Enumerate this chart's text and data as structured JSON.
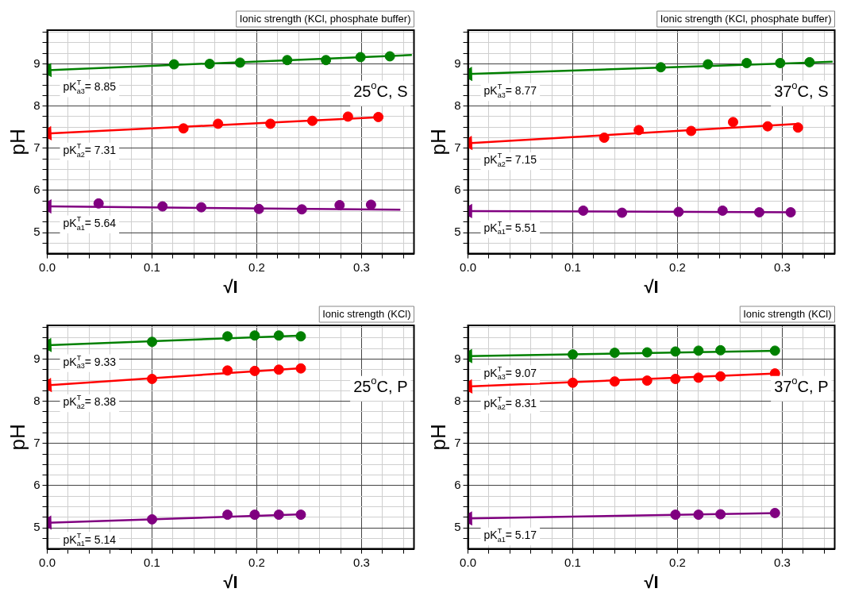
{
  "chart_data": [
    {
      "type": "scatter",
      "title": "Ionic strength (KCl, phosphate buffer)",
      "xlabel": "√I",
      "ylabel": "pH",
      "xlim": [
        0,
        0.35
      ],
      "ylim": [
        4.5,
        9.8
      ],
      "xticks": [
        {
          "value": 0,
          "label": "0.0"
        },
        {
          "value": 0.02,
          "label": null
        },
        {
          "value": 0.04,
          "label": null
        },
        {
          "value": 0.06,
          "label": null
        },
        {
          "value": 0.08,
          "label": null
        },
        {
          "value": 0.1,
          "label": "0.1"
        },
        {
          "value": 0.12,
          "label": null
        },
        {
          "value": 0.14,
          "label": null
        },
        {
          "value": 0.16,
          "label": null
        },
        {
          "value": 0.18,
          "label": null
        },
        {
          "value": 0.2,
          "label": "0.2"
        },
        {
          "value": 0.22,
          "label": null
        },
        {
          "value": 0.24,
          "label": null
        },
        {
          "value": 0.26,
          "label": null
        },
        {
          "value": 0.28,
          "label": null
        },
        {
          "value": 0.3,
          "label": "0.3"
        },
        {
          "value": 0.32,
          "label": null
        },
        {
          "value": 0.34,
          "label": null
        }
      ],
      "yticks": [
        {
          "value": 4.75,
          "label": null
        },
        5,
        {
          "value": 5.25,
          "label": null
        },
        {
          "value": 5.5,
          "label": null
        },
        {
          "value": 5.75,
          "label": null
        },
        6,
        {
          "value": 6.25,
          "label": null
        },
        {
          "value": 6.5,
          "label": null
        },
        {
          "value": 6.75,
          "label": null
        },
        7,
        {
          "value": 7.25,
          "label": null
        },
        {
          "value": 7.5,
          "label": null
        },
        {
          "value": 7.75,
          "label": null
        },
        8,
        {
          "value": 8.25,
          "label": null
        },
        {
          "value": 8.5,
          "label": null
        },
        {
          "value": 8.75,
          "label": null
        },
        9,
        {
          "value": 9.25,
          "label": null
        },
        {
          "value": 9.5,
          "label": null
        },
        {
          "value": 9.75,
          "label": null
        }
      ],
      "grid": true,
      "series": [
        {
          "type": "scatter",
          "marker": "circle",
          "color": "#008000",
          "x": [
            0.121,
            0.155,
            0.184,
            0.229,
            0.266,
            0.299,
            0.327
          ],
          "values": [
            8.99,
            9.0,
            9.03,
            9.09,
            9.09,
            9.16,
            9.18
          ]
        },
        {
          "type": "scatter",
          "marker": "circle",
          "color": "#ff0000",
          "x": [
            0.13,
            0.163,
            0.213,
            0.253,
            0.287,
            0.316
          ],
          "values": [
            7.47,
            7.58,
            7.58,
            7.65,
            7.75,
            7.74
          ]
        },
        {
          "type": "scatter",
          "marker": "circle",
          "color": "#800080",
          "x": [
            0.049,
            0.11,
            0.147,
            0.202,
            0.243,
            0.279,
            0.309
          ],
          "values": [
            5.69,
            5.62,
            5.6,
            5.56,
            5.55,
            5.65,
            5.66
          ]
        },
        {
          "type": "line",
          "marker": "triangle",
          "line_style": "solid",
          "color": "#008000",
          "x": [
            0,
            0.348
          ],
          "values": [
            8.85,
            9.21
          ]
        },
        {
          "type": "line",
          "marker": "triangle",
          "line_style": "solid",
          "color": "#ff0000",
          "x": [
            0,
            0.32
          ],
          "values": [
            7.35,
            7.74
          ]
        },
        {
          "type": "line",
          "marker": "triangle",
          "line_style": "solid",
          "color": "#800080",
          "x": [
            0,
            0.337
          ],
          "values": [
            5.62,
            5.54
          ]
        }
      ],
      "annotations": [
        "pK$^{T}$$_{a3}$= 8.85",
        "pK$^{T}$$_{a2}$= 7.31",
        "pK$^{T}$$_{a1}$= 5.64",
        "25$^{o}$C, S"
      ]
    },
    {
      "type": "scatter",
      "title": "Ionic strength (KCl, phosphate buffer)",
      "xlabel": "√I",
      "ylabel": "pH",
      "xlim": [
        0,
        0.35
      ],
      "ylim": [
        4.5,
        9.8
      ],
      "xticks": [
        {
          "value": 0,
          "label": "0.0"
        },
        {
          "value": 0.02,
          "label": null
        },
        {
          "value": 0.04,
          "label": null
        },
        {
          "value": 0.06,
          "label": null
        },
        {
          "value": 0.08,
          "label": null
        },
        {
          "value": 0.1,
          "label": "0.1"
        },
        {
          "value": 0.12,
          "label": null
        },
        {
          "value": 0.14,
          "label": null
        },
        {
          "value": 0.16,
          "label": null
        },
        {
          "value": 0.18,
          "label": null
        },
        {
          "value": 0.2,
          "label": "0.2"
        },
        {
          "value": 0.22,
          "label": null
        },
        {
          "value": 0.24,
          "label": null
        },
        {
          "value": 0.26,
          "label": null
        },
        {
          "value": 0.28,
          "label": null
        },
        {
          "value": 0.3,
          "label": "0.3"
        },
        {
          "value": 0.32,
          "label": null
        },
        {
          "value": 0.34,
          "label": null
        }
      ],
      "yticks": [
        {
          "value": 4.75,
          "label": null
        },
        5,
        {
          "value": 5.25,
          "label": null
        },
        {
          "value": 5.5,
          "label": null
        },
        {
          "value": 5.75,
          "label": null
        },
        6,
        {
          "value": 6.25,
          "label": null
        },
        {
          "value": 6.5,
          "label": null
        },
        {
          "value": 6.75,
          "label": null
        },
        7,
        {
          "value": 7.25,
          "label": null
        },
        {
          "value": 7.5,
          "label": null
        },
        {
          "value": 7.75,
          "label": null
        },
        8,
        {
          "value": 8.25,
          "label": null
        },
        {
          "value": 8.5,
          "label": null
        },
        {
          "value": 8.75,
          "label": null
        },
        9,
        {
          "value": 9.25,
          "label": null
        },
        {
          "value": 9.5,
          "label": null
        },
        {
          "value": 9.75,
          "label": null
        }
      ],
      "grid": true,
      "series": [
        {
          "type": "scatter",
          "marker": "circle",
          "color": "#008000",
          "x": [
            0.184,
            0.229,
            0.266,
            0.298,
            0.326
          ],
          "values": [
            8.92,
            8.99,
            9.02,
            9.02,
            9.04
          ]
        },
        {
          "type": "scatter",
          "marker": "circle",
          "color": "#ff0000",
          "x": [
            0.13,
            0.163,
            0.213,
            0.253,
            0.286,
            0.315
          ],
          "values": [
            7.25,
            7.43,
            7.41,
            7.62,
            7.52,
            7.49
          ]
        },
        {
          "type": "scatter",
          "marker": "circle",
          "color": "#800080",
          "x": [
            0.11,
            0.147,
            0.201,
            0.243,
            0.278,
            0.308
          ],
          "values": [
            5.52,
            5.47,
            5.49,
            5.52,
            5.48,
            5.48
          ]
        },
        {
          "type": "line",
          "marker": "triangle",
          "line_style": "solid",
          "color": "#008000",
          "x": [
            0,
            0.348
          ],
          "values": [
            8.76,
            9.05
          ]
        },
        {
          "type": "line",
          "marker": "triangle",
          "line_style": "solid",
          "color": "#ff0000",
          "x": [
            0,
            0.316
          ],
          "values": [
            7.12,
            7.58
          ]
        },
        {
          "type": "line",
          "marker": "triangle",
          "line_style": "solid",
          "color": "#800080",
          "x": [
            0,
            0.311
          ],
          "values": [
            5.51,
            5.48
          ]
        }
      ],
      "annotations": [
        "pK$^{T}$$_{a3}$= 8.77",
        "pK$^{T}$$_{a2}$= 7.15",
        "pK$^{T}$$_{a1}$= 5.51",
        "37$^{o}$C, S"
      ]
    },
    {
      "type": "scatter",
      "title": "Ionic strength (KCl)",
      "xlabel": "√I",
      "ylabel": "pH",
      "xlim": [
        0,
        0.35
      ],
      "ylim": [
        4.5,
        9.8
      ],
      "xticks": [
        {
          "value": 0,
          "label": "0.0"
        },
        {
          "value": 0.02,
          "label": null
        },
        {
          "value": 0.04,
          "label": null
        },
        {
          "value": 0.06,
          "label": null
        },
        {
          "value": 0.08,
          "label": null
        },
        {
          "value": 0.1,
          "label": "0.1"
        },
        {
          "value": 0.12,
          "label": null
        },
        {
          "value": 0.14,
          "label": null
        },
        {
          "value": 0.16,
          "label": null
        },
        {
          "value": 0.18,
          "label": null
        },
        {
          "value": 0.2,
          "label": "0.2"
        },
        {
          "value": 0.22,
          "label": null
        },
        {
          "value": 0.24,
          "label": null
        },
        {
          "value": 0.26,
          "label": null
        },
        {
          "value": 0.28,
          "label": null
        },
        {
          "value": 0.3,
          "label": "0.3"
        },
        {
          "value": 0.32,
          "label": null
        },
        {
          "value": 0.34,
          "label": null
        }
      ],
      "yticks": [
        {
          "value": 4.75,
          "label": null
        },
        5,
        {
          "value": 5.25,
          "label": null
        },
        {
          "value": 5.5,
          "label": null
        },
        {
          "value": 5.75,
          "label": null
        },
        6,
        {
          "value": 6.25,
          "label": null
        },
        {
          "value": 6.5,
          "label": null
        },
        {
          "value": 6.75,
          "label": null
        },
        7,
        {
          "value": 7.25,
          "label": null
        },
        {
          "value": 7.5,
          "label": null
        },
        {
          "value": 7.75,
          "label": null
        },
        8,
        {
          "value": 8.25,
          "label": null
        },
        {
          "value": 8.5,
          "label": null
        },
        {
          "value": 8.75,
          "label": null
        },
        9,
        {
          "value": 9.25,
          "label": null
        },
        {
          "value": 9.5,
          "label": null
        },
        {
          "value": 9.75,
          "label": null
        }
      ],
      "grid": true,
      "series": [
        {
          "type": "scatter",
          "marker": "circle",
          "color": "#008000",
          "x": [
            0.1,
            0.172,
            0.198,
            0.221,
            0.242
          ],
          "values": [
            9.41,
            9.54,
            9.56,
            9.56,
            9.54
          ]
        },
        {
          "type": "scatter",
          "marker": "circle",
          "color": "#ff0000",
          "x": [
            0.1,
            0.172,
            0.198,
            0.221,
            0.242
          ],
          "values": [
            8.53,
            8.73,
            8.72,
            8.75,
            8.78
          ]
        },
        {
          "type": "scatter",
          "marker": "circle",
          "color": "#800080",
          "x": [
            0.1,
            0.172,
            0.198,
            0.221,
            0.242
          ],
          "values": [
            5.2,
            5.31,
            5.31,
            5.31,
            5.31
          ]
        },
        {
          "type": "line",
          "marker": "triangle",
          "line_style": "solid",
          "color": "#008000",
          "x": [
            0,
            0.245
          ],
          "values": [
            9.33,
            9.56
          ]
        },
        {
          "type": "line",
          "marker": "triangle",
          "line_style": "solid",
          "color": "#ff0000",
          "x": [
            0,
            0.245
          ],
          "values": [
            8.38,
            8.79
          ]
        },
        {
          "type": "line",
          "marker": "triangle",
          "line_style": "solid",
          "color": "#800080",
          "x": [
            0,
            0.245
          ],
          "values": [
            5.12,
            5.32
          ]
        }
      ],
      "annotations": [
        "pK$^{T}$$_{a3}$= 9.33",
        "pK$^{T}$$_{a2}$= 8.38",
        "pK$^{T}$$_{a1}$= 5.14",
        "25$^{o}$C, P"
      ]
    },
    {
      "type": "scatter",
      "title": "Ionic strength (KCl)",
      "xlabel": "√I",
      "ylabel": "pH",
      "xlim": [
        0,
        0.35
      ],
      "ylim": [
        4.5,
        9.8
      ],
      "xticks": [
        {
          "value": 0,
          "label": "0.0"
        },
        {
          "value": 0.02,
          "label": null
        },
        {
          "value": 0.04,
          "label": null
        },
        {
          "value": 0.06,
          "label": null
        },
        {
          "value": 0.08,
          "label": null
        },
        {
          "value": 0.1,
          "label": "0.1"
        },
        {
          "value": 0.12,
          "label": null
        },
        {
          "value": 0.14,
          "label": null
        },
        {
          "value": 0.16,
          "label": null
        },
        {
          "value": 0.18,
          "label": null
        },
        {
          "value": 0.2,
          "label": "0.2"
        },
        {
          "value": 0.22,
          "label": null
        },
        {
          "value": 0.24,
          "label": null
        },
        {
          "value": 0.26,
          "label": null
        },
        {
          "value": 0.28,
          "label": null
        },
        {
          "value": 0.3,
          "label": "0.3"
        },
        {
          "value": 0.32,
          "label": null
        },
        {
          "value": 0.34,
          "label": null
        }
      ],
      "yticks": [
        {
          "value": 4.75,
          "label": null
        },
        5,
        {
          "value": 5.25,
          "label": null
        },
        {
          "value": 5.5,
          "label": null
        },
        {
          "value": 5.75,
          "label": null
        },
        6,
        {
          "value": 6.25,
          "label": null
        },
        {
          "value": 6.5,
          "label": null
        },
        {
          "value": 6.75,
          "label": null
        },
        7,
        {
          "value": 7.25,
          "label": null
        },
        {
          "value": 7.5,
          "label": null
        },
        {
          "value": 7.75,
          "label": null
        },
        8,
        {
          "value": 8.25,
          "label": null
        },
        {
          "value": 8.5,
          "label": null
        },
        {
          "value": 8.75,
          "label": null
        },
        9,
        {
          "value": 9.25,
          "label": null
        },
        {
          "value": 9.5,
          "label": null
        },
        {
          "value": 9.75,
          "label": null
        }
      ],
      "grid": true,
      "series": [
        {
          "type": "scatter",
          "marker": "circle",
          "color": "#008000",
          "x": [
            0.1,
            0.14,
            0.171,
            0.198,
            0.22,
            0.241,
            0.293
          ],
          "values": [
            9.11,
            9.15,
            9.16,
            9.18,
            9.2,
            9.21,
            9.2
          ]
        },
        {
          "type": "scatter",
          "marker": "circle",
          "color": "#ff0000",
          "x": [
            0.1,
            0.14,
            0.171,
            0.198,
            0.22,
            0.241,
            0.293
          ],
          "values": [
            8.44,
            8.47,
            8.49,
            8.53,
            8.56,
            8.59,
            8.66
          ]
        },
        {
          "type": "scatter",
          "marker": "circle",
          "color": "#800080",
          "x": [
            0.198,
            0.22,
            0.241,
            0.293
          ],
          "values": [
            5.31,
            5.31,
            5.32,
            5.35
          ]
        },
        {
          "type": "line",
          "marker": "triangle",
          "line_style": "solid",
          "color": "#008000",
          "x": [
            0,
            0.296
          ],
          "values": [
            9.07,
            9.2
          ]
        },
        {
          "type": "line",
          "marker": "triangle",
          "line_style": "solid",
          "color": "#ff0000",
          "x": [
            0,
            0.296
          ],
          "values": [
            8.35,
            8.66
          ]
        },
        {
          "type": "line",
          "marker": "triangle",
          "line_style": "solid",
          "color": "#800080",
          "x": [
            0,
            0.296
          ],
          "values": [
            5.22,
            5.35
          ]
        }
      ],
      "annotations": [
        "pK$^{T}$$_{a3}$= 9.07",
        "pK$^{T}$$_{a2}$= 8.31",
        "pK$^{T}$$_{a1}$= 5.17",
        "37$^{o}$C, P"
      ]
    }
  ]
}
